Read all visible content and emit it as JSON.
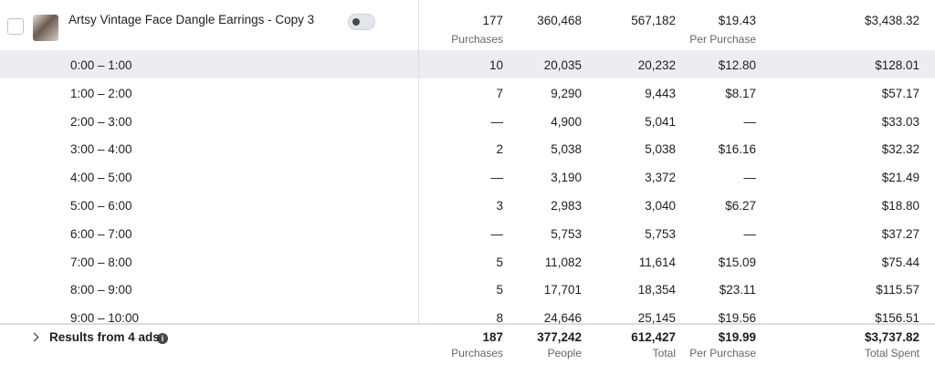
{
  "ad_row": {
    "name": "Artsy Vintage Face Dangle Earrings - Copy 3",
    "cells": [
      "177",
      "360,468",
      "567,182",
      "$19.43",
      "$3,438.32"
    ],
    "sublabels": {
      "results": "Purchases",
      "cost_per_result": "Per Purchase"
    }
  },
  "breakdown_rows": [
    [
      "0:00 – 1:00",
      "10",
      "20,035",
      "20,232",
      "$12.80",
      "$128.01"
    ],
    [
      "1:00 – 2:00",
      "7",
      "9,290",
      "9,443",
      "$8.17",
      "$57.17"
    ],
    [
      "2:00 – 3:00",
      "—",
      "4,900",
      "5,041",
      "—",
      "$33.03"
    ],
    [
      "3:00 – 4:00",
      "2",
      "5,038",
      "5,038",
      "$16.16",
      "$32.32"
    ],
    [
      "4:00 – 5:00",
      "—",
      "3,190",
      "3,372",
      "—",
      "$21.49"
    ],
    [
      "5:00 – 6:00",
      "3",
      "2,983",
      "3,040",
      "$6.27",
      "$18.80"
    ],
    [
      "6:00 – 7:00",
      "—",
      "5,753",
      "5,753",
      "—",
      "$37.27"
    ],
    [
      "7:00 – 8:00",
      "5",
      "11,082",
      "11,614",
      "$15.09",
      "$75.44"
    ],
    [
      "8:00 – 9:00",
      "5",
      "17,701",
      "18,354",
      "$23.11",
      "$115.57"
    ],
    [
      "9:00 – 10:00",
      "8",
      "24,646",
      "25,145",
      "$19.56",
      "$156.51"
    ]
  ],
  "footer": {
    "label": "Results from 4 ads",
    "cells": [
      "187",
      "377,242",
      "612,427",
      "$19.99",
      "$3,737.82"
    ],
    "sublabels": [
      "Purchases",
      "People",
      "Total",
      "Per Purchase",
      "Total Spent"
    ]
  }
}
